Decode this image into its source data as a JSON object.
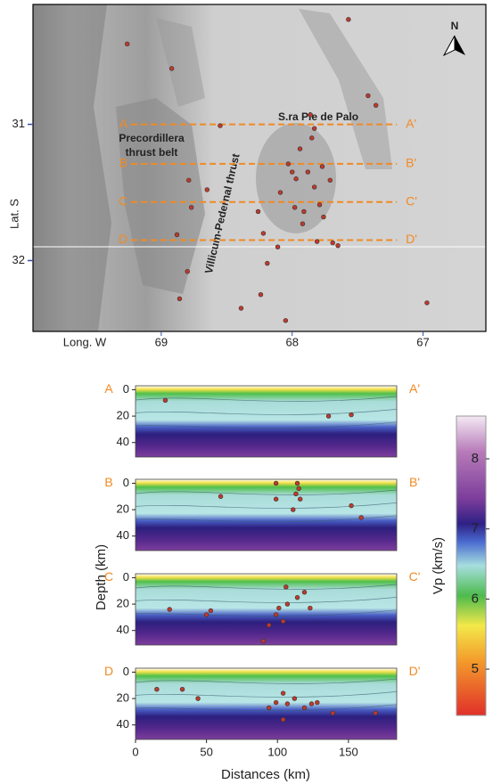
{
  "map": {
    "xlabel": "Long. W",
    "ylabel": "Lat. S",
    "xlim": [
      69.98,
      66.52
    ],
    "ylim": [
      30.12,
      32.52
    ],
    "xticks": [
      69,
      68,
      67
    ],
    "yticks": [
      31,
      32
    ],
    "north": "N",
    "range_label": "S.ra Pie de Palo",
    "belt_label": [
      "Precordillera",
      "thrust belt"
    ],
    "thrust_label": "Villicum-Pedernal thrust",
    "profile_color": "#f08a24",
    "profiles": [
      {
        "start": "A",
        "end": "A'",
        "lat": 31.0,
        "lon": [
          69.23,
          67.2
        ]
      },
      {
        "start": "B",
        "end": "B'",
        "lat": 31.29,
        "lon": [
          69.23,
          67.2
        ]
      },
      {
        "start": "C",
        "end": "C'",
        "lat": 31.57,
        "lon": [
          69.23,
          67.2
        ]
      },
      {
        "start": "D",
        "end": "D'",
        "lat": 31.85,
        "lon": [
          69.23,
          67.2
        ]
      }
    ],
    "quake_color": "#c0392b",
    "quakes": {
      "lon": [
        69.26,
        68.92,
        67.57,
        67.42,
        67.36,
        67.86,
        67.83,
        67.85,
        67.94,
        68.03,
        68.0,
        67.97,
        67.88,
        67.83,
        67.77,
        67.79,
        67.76,
        67.69,
        67.65,
        67.98,
        67.91,
        68.09,
        68.22,
        68.19,
        68.24,
        68.39,
        68.05,
        68.79,
        68.65,
        68.77,
        68.88,
        68.8,
        68.86,
        68.55,
        66.97,
        67.71,
        67.81,
        67.92,
        68.11,
        68.26
      ],
      "lat": [
        30.41,
        30.59,
        30.23,
        30.79,
        30.86,
        30.93,
        31.03,
        31.1,
        31.18,
        31.29,
        31.35,
        31.4,
        31.35,
        31.46,
        31.31,
        31.59,
        31.68,
        31.87,
        31.89,
        31.61,
        31.64,
        31.5,
        31.8,
        32.02,
        32.25,
        32.35,
        32.44,
        31.41,
        31.48,
        31.61,
        31.81,
        32.08,
        32.28,
        31.01,
        32.31,
        31.41,
        31.86,
        31.73,
        31.9,
        31.64
      ]
    }
  },
  "sections": {
    "xlabel": "Distances (km)",
    "ylabel": "Depth (km)",
    "xlim": [
      0,
      184
    ],
    "ylim": [
      -3,
      51
    ],
    "xticks": [
      0,
      50,
      100,
      150
    ],
    "yticks": [
      0,
      20,
      40
    ],
    "quakes": [
      {
        "x": [
          21,
          136,
          152
        ],
        "y": [
          8,
          20,
          19
        ]
      },
      {
        "x": [
          60,
          99,
          114,
          115,
          113,
          116,
          111,
          152,
          159,
          99
        ],
        "y": [
          10,
          0,
          0,
          4,
          8,
          12,
          20,
          17,
          26,
          12
        ]
      },
      {
        "x": [
          24,
          50,
          53,
          90,
          94,
          99,
          101,
          107,
          104,
          114,
          119,
          123,
          106
        ],
        "y": [
          24,
          28,
          25,
          48,
          36,
          28,
          23,
          20,
          33,
          15,
          11,
          23,
          7
        ]
      },
      {
        "x": [
          15,
          33,
          44,
          94,
          99,
          104,
          107,
          112,
          119,
          124,
          128,
          139,
          169,
          104
        ],
        "y": [
          13,
          13,
          20,
          27,
          23,
          16,
          24,
          20,
          27,
          24,
          23,
          31,
          31,
          36
        ]
      }
    ]
  },
  "colorbar": {
    "label": "Vp (km/s)",
    "vlim": [
      4.34,
      8.61
    ],
    "ticks": [
      5,
      6,
      7,
      8
    ]
  }
}
